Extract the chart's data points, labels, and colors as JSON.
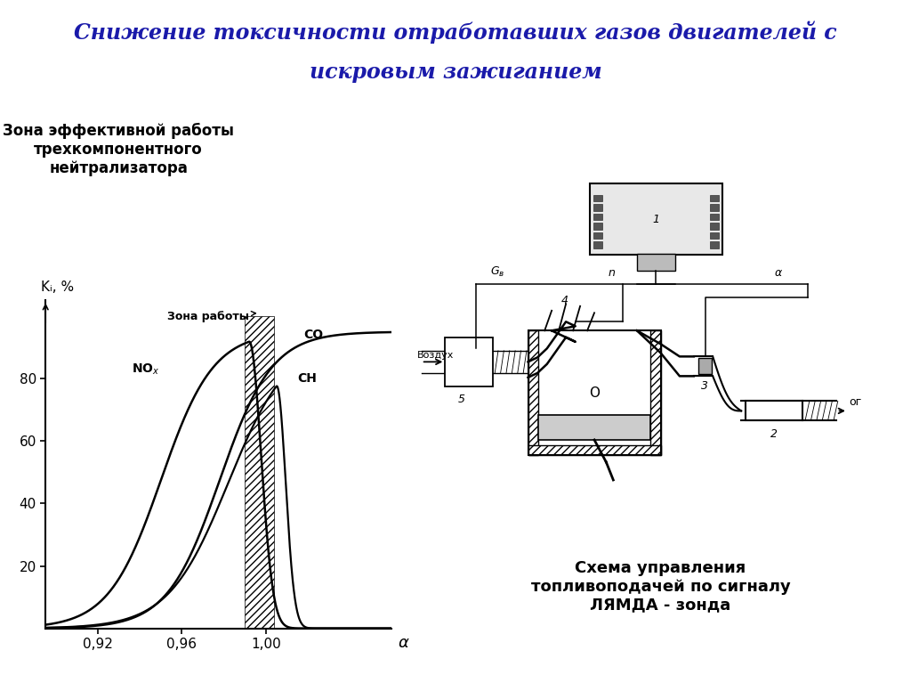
{
  "title_line1": "Снижение токсичности отработавших газов двигателей с",
  "title_line2": "искровым зажиганием",
  "left_title": "Зона эффективной работы\nтрехкомпонентного\nнейтрализатора",
  "zona_raboty": "Зона работы",
  "ylabel": "Kᵢ, %",
  "xlabel": "α",
  "xtick_labels": [
    "0,92",
    "0,96",
    "1,00"
  ],
  "xtick_vals": [
    0.92,
    0.96,
    1.0
  ],
  "ytick_vals": [
    20,
    40,
    60,
    80
  ],
  "right_title": "Схема управления\nтопливоподачей по сигналу\nЛЯМДА - зонда",
  "title_color": "#1a1aaa",
  "bg_color": "#ffffff",
  "vozduh": "Воздух",
  "og": "ог"
}
